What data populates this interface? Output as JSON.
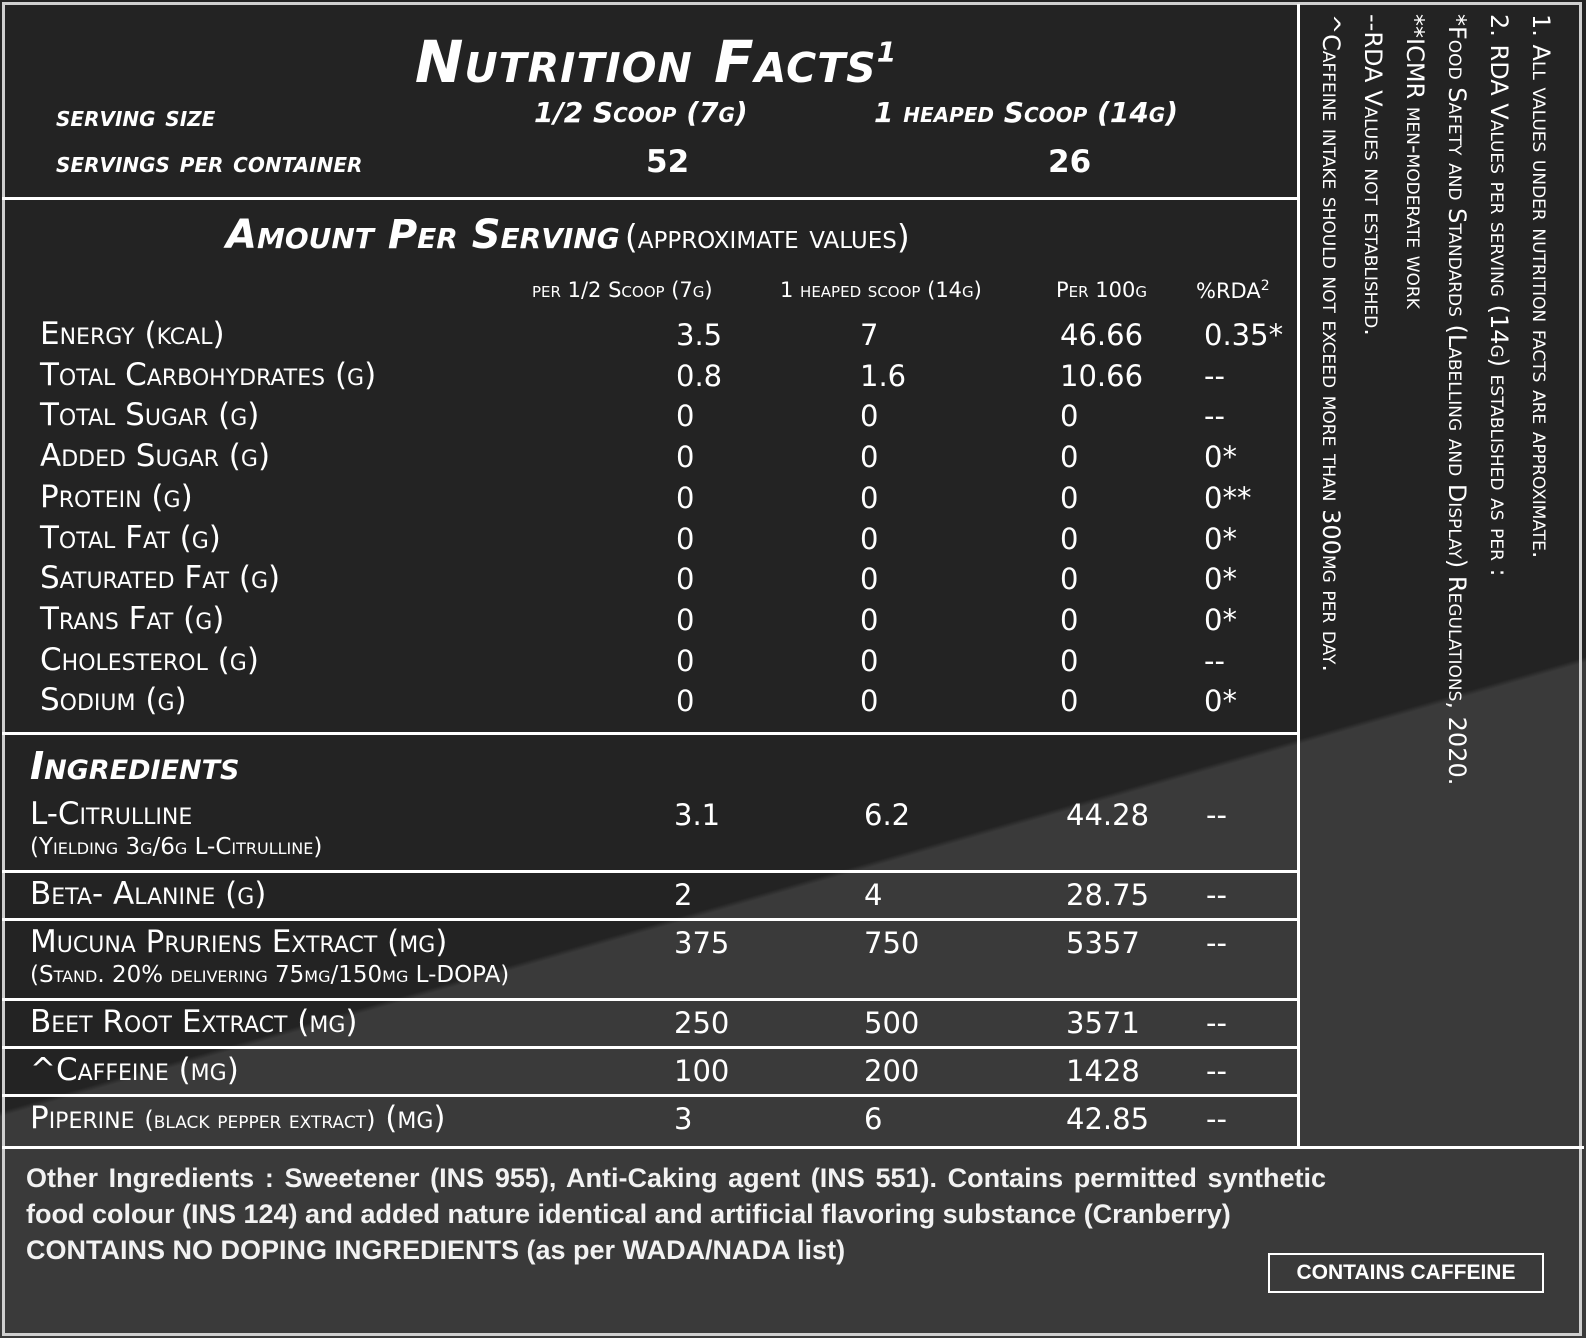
{
  "title": "Nutrition Facts",
  "title_sup": "1",
  "serving": {
    "size_label": "serving size",
    "size_half": "1/2 Scoop (7g)",
    "size_full": "1 heaped Scoop (14g)",
    "per_container_label": "servings per container",
    "per_container_half": "52",
    "per_container_full": "26"
  },
  "amount": {
    "heading": "Amount Per Serving",
    "heading_note": "(approximate values)",
    "col_half": "per 1/2 Scoop (7g)",
    "col_full": "1 heaped scoop (14g)",
    "col_100": "Per 100g",
    "col_rda": "%RDA",
    "col_rda_sup": "2"
  },
  "nutrients": [
    {
      "name": "Energy (kcal)",
      "half": "3.5",
      "full": "7",
      "per100": "46.66",
      "rda": "0.35*"
    },
    {
      "name": "Total Carbohydrates (g)",
      "half": "0.8",
      "full": "1.6",
      "per100": "10.66",
      "rda": "--"
    },
    {
      "name": "Total Sugar (g)",
      "half": "0",
      "full": "0",
      "per100": "0",
      "rda": "--"
    },
    {
      "name": "Added Sugar (g)",
      "half": "0",
      "full": "0",
      "per100": "0",
      "rda": "0*"
    },
    {
      "name": "Protein (g)",
      "half": "0",
      "full": "0",
      "per100": "0",
      "rda": "0**"
    },
    {
      "name": "Total Fat (g)",
      "half": "0",
      "full": "0",
      "per100": "0",
      "rda": "0*"
    },
    {
      "name": "Saturated Fat (g)",
      "half": "0",
      "full": "0",
      "per100": "0",
      "rda": "0*"
    },
    {
      "name": "Trans Fat (g)",
      "half": "0",
      "full": "0",
      "per100": "0",
      "rda": "0*"
    },
    {
      "name": "Cholesterol (g)",
      "half": "0",
      "full": "0",
      "per100": "0",
      "rda": "--"
    },
    {
      "name": "Sodium (g)",
      "half": "0",
      "full": "0",
      "per100": "0",
      "rda": "0*"
    }
  ],
  "ingredients_heading": "Ingredients",
  "ingredients": [
    {
      "name": "L-Citrulline",
      "sub": "(Yielding 3g/6g L-Citrulline)",
      "half": "3.1",
      "full": "6.2",
      "per100": "44.28",
      "rda": "--"
    },
    {
      "name": "Beta- Alanine (g)",
      "sub": "",
      "half": "2",
      "full": "4",
      "per100": "28.75",
      "rda": "--"
    },
    {
      "name": "Mucuna Pruriens Extract (mg)",
      "sub": "(Stand. 20% delivering 75mg/150mg L-DOPA)",
      "half": "375",
      "full": "750",
      "per100": "5357",
      "rda": "--"
    },
    {
      "name": "Beet Root Extract (mg)",
      "sub": "",
      "half": "250",
      "full": "500",
      "per100": "3571",
      "rda": "--"
    },
    {
      "name": "^Caffeine (mg)",
      "sub": "",
      "half": "100",
      "full": "200",
      "per100": "1428",
      "rda": "--"
    },
    {
      "name": "Piperine",
      "name_small": "(black pepper extract)",
      "name_end": "(mg)",
      "sub": "",
      "half": "3",
      "full": "6",
      "per100": "42.85",
      "rda": "--"
    }
  ],
  "other_ingredients": "Other Ingredients : Sweetener (INS 955), Anti-Caking agent (INS 551). Contains permitted synthetic food colour (INS 124) and added nature identical and artificial flavoring substance (Cranberry)",
  "doping_note": "CONTAINS NO DOPING INGREDIENTS (as per WADA/NADA list)",
  "caffeine_badge": "CONTAINS CAFFEINE",
  "side_notes": [
    "1. All values under nutrition facts are approximate.",
    "2. RDA Values per serving (14g) established as per :",
    "*Food Safety and Standards (Labelling and Display) Regulations, 2020.",
    "**ICMR men-moderate work",
    "--RDA Values not established.",
    "^Caffeine intake should not exceed more than 300mg per day."
  ],
  "colors": {
    "background": "#232323",
    "lower_band": "#3a3a3a",
    "text": "#ffffff"
  }
}
